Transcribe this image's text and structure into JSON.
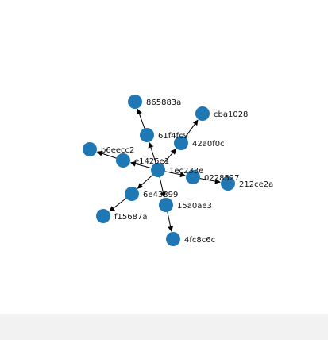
{
  "graph": {
    "node_color": "#1f77b4",
    "edge_color": "#000000",
    "background": "#ffffff",
    "nodes": [
      {
        "id": "1ec233e",
        "label": "1ec233e"
      },
      {
        "id": "61f4fc9",
        "label": "61f4fc9"
      },
      {
        "id": "865883a",
        "label": "865883a"
      },
      {
        "id": "42a0f0c",
        "label": "42a0f0c"
      },
      {
        "id": "cba1028",
        "label": "cba1028"
      },
      {
        "id": "e1425e1",
        "label": "e1425e1"
      },
      {
        "id": "b6eecc2",
        "label": "b6eecc2"
      },
      {
        "id": "0228527",
        "label": "0228527"
      },
      {
        "id": "212ce2a",
        "label": "212ce2a"
      },
      {
        "id": "6e43899",
        "label": "6e43899"
      },
      {
        "id": "f15687a",
        "label": "f15687a"
      },
      {
        "id": "15a0ae3",
        "label": "15a0ae3"
      },
      {
        "id": "4fc8c6c",
        "label": "4fc8c6c"
      }
    ],
    "edges": [
      {
        "source": "1ec233e",
        "target": "61f4fc9"
      },
      {
        "source": "61f4fc9",
        "target": "865883a"
      },
      {
        "source": "1ec233e",
        "target": "42a0f0c"
      },
      {
        "source": "42a0f0c",
        "target": "cba1028"
      },
      {
        "source": "1ec233e",
        "target": "e1425e1"
      },
      {
        "source": "e1425e1",
        "target": "b6eecc2"
      },
      {
        "source": "1ec233e",
        "target": "0228527"
      },
      {
        "source": "0228527",
        "target": "212ce2a"
      },
      {
        "source": "1ec233e",
        "target": "6e43899"
      },
      {
        "source": "6e43899",
        "target": "f15687a"
      },
      {
        "source": "1ec233e",
        "target": "15a0ae3"
      },
      {
        "source": "15a0ae3",
        "target": "4fc8c6c"
      }
    ]
  }
}
